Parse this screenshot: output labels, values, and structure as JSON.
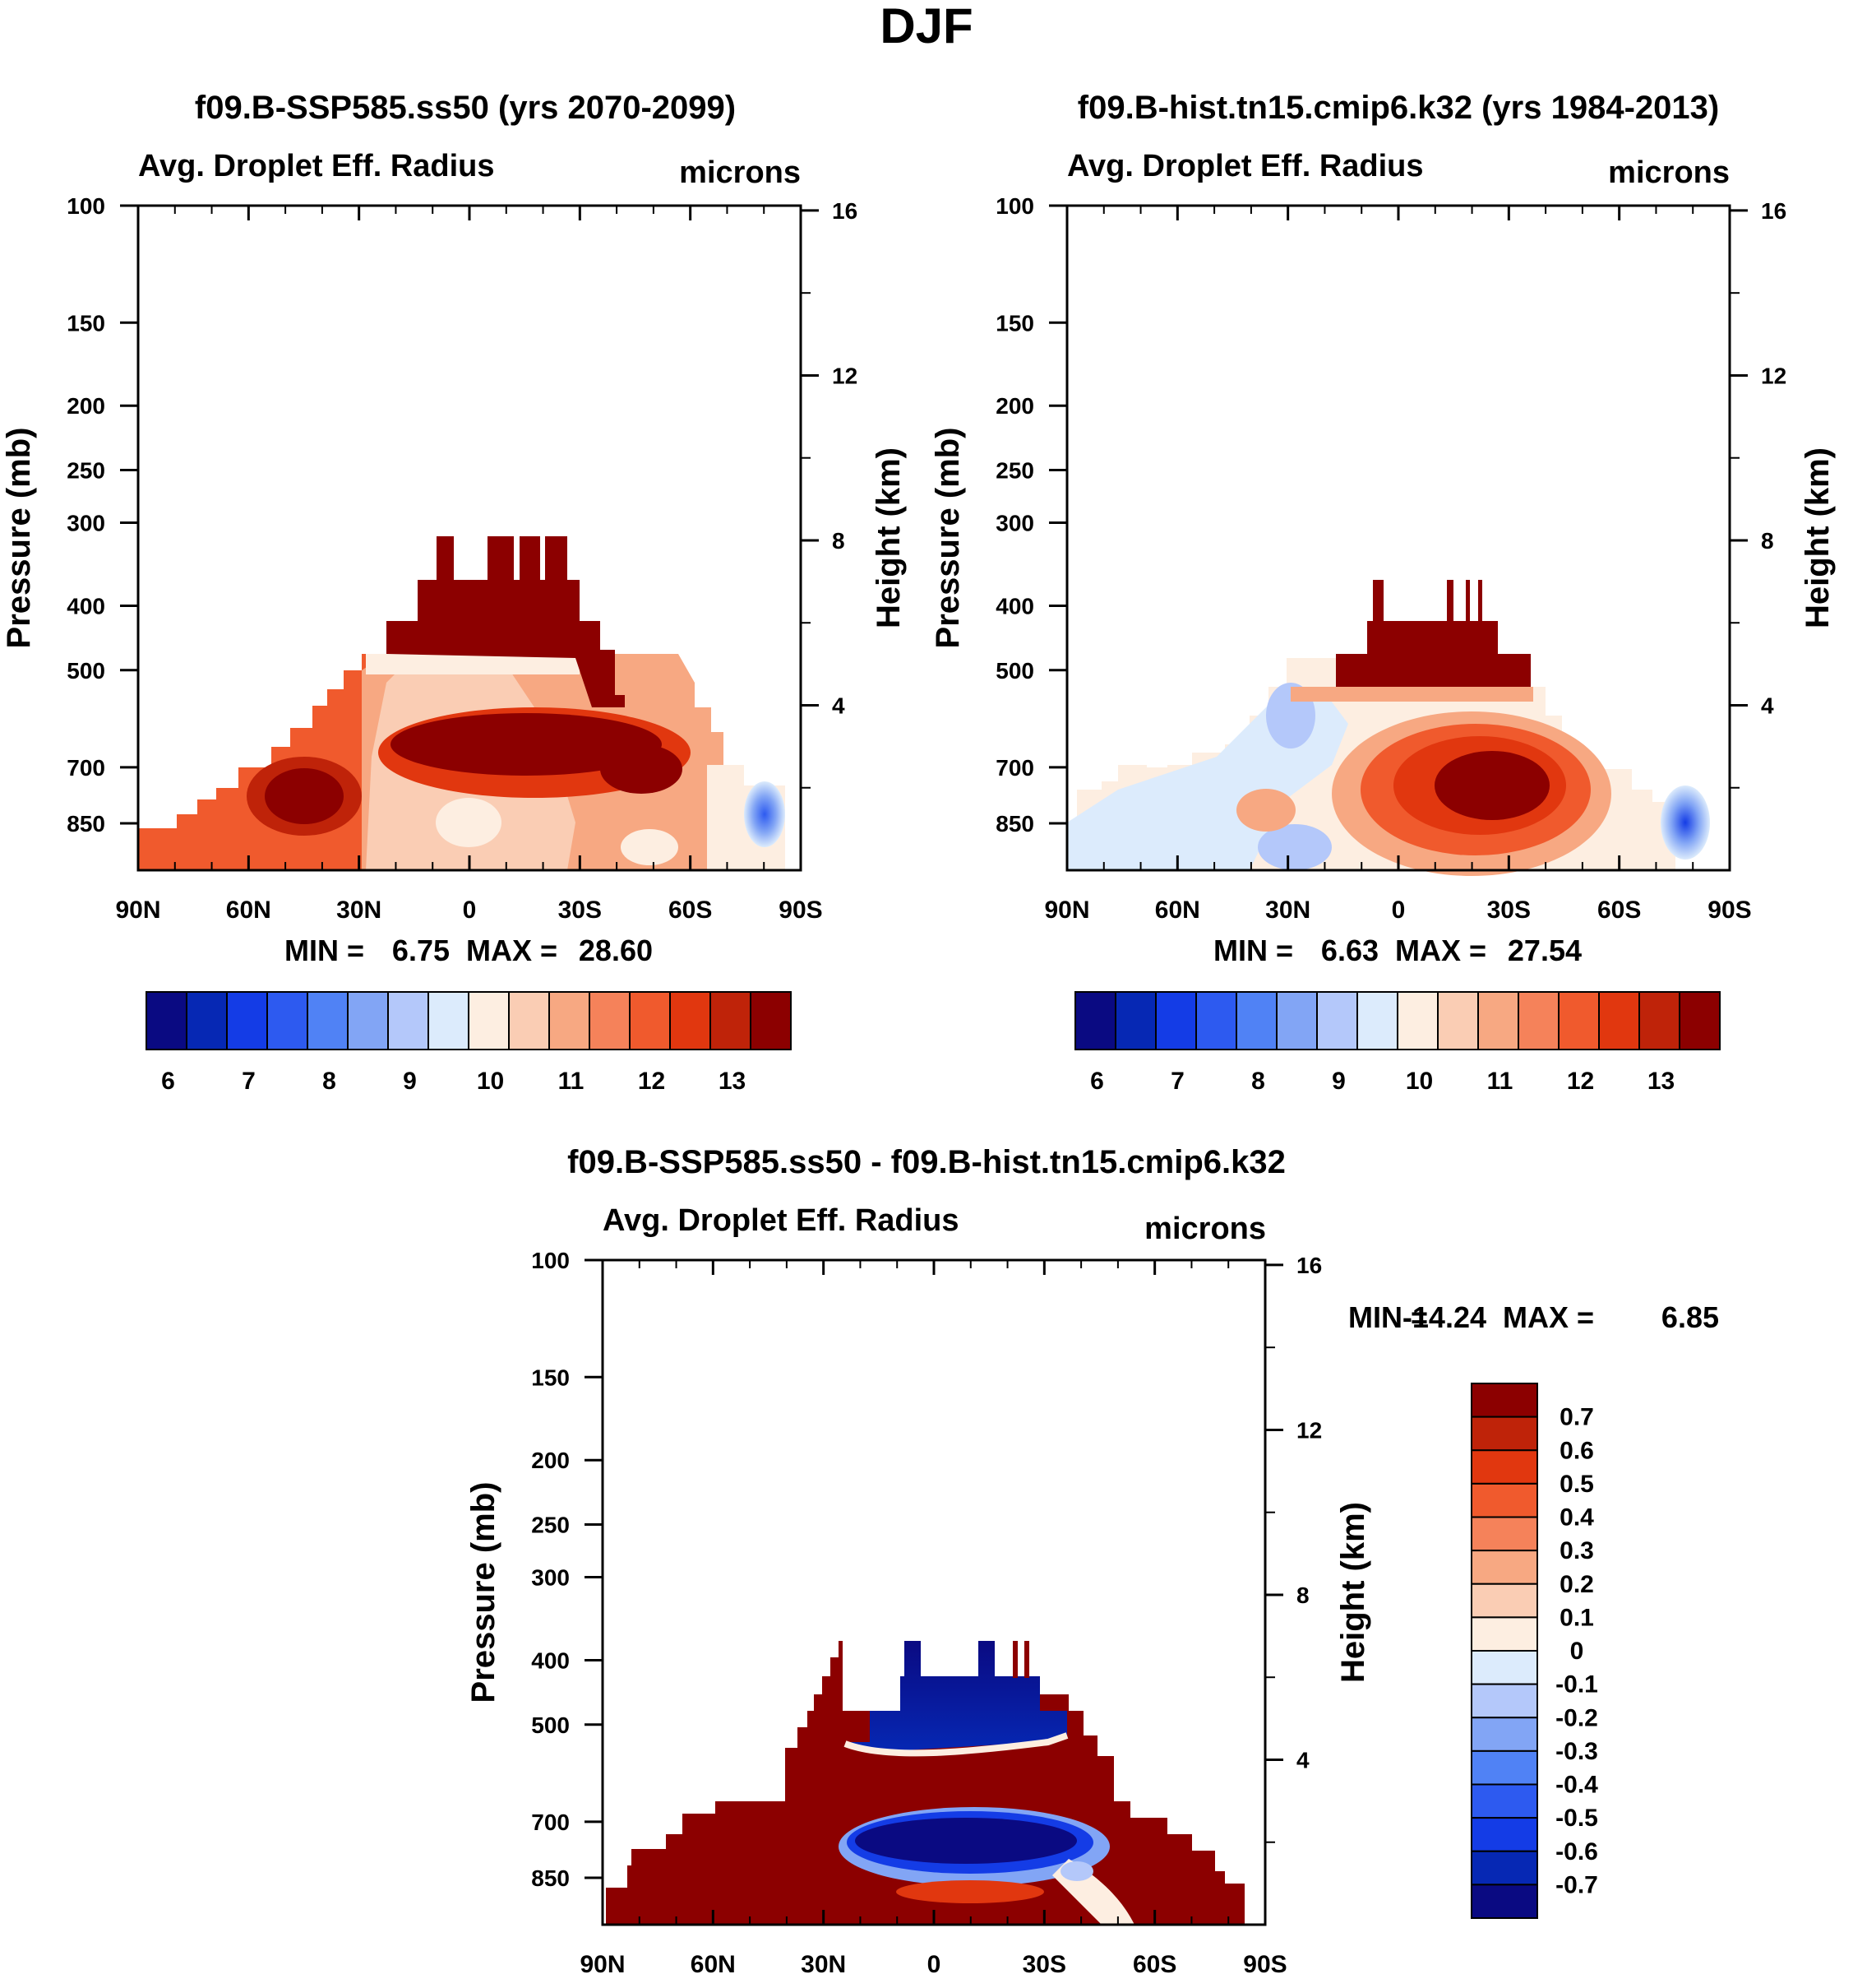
{
  "main_title": "DJF",
  "chart_data": [
    {
      "type": "heatmap",
      "id": "p1",
      "title": "f09.B-SSP585.ss50 (yrs 2070-2099)",
      "left_label": "Avg. Droplet Eff. Radius",
      "right_label": "microns",
      "xlabel": "",
      "ylabel": "Pressure (mb)",
      "y2label": "Height (km)",
      "x_ticks": [
        "90N",
        "60N",
        "30N",
        "0",
        "30S",
        "60S",
        "90S"
      ],
      "y_ticks": [
        100,
        150,
        200,
        250,
        300,
        400,
        500,
        700,
        850
      ],
      "y2_ticks": [
        16,
        12,
        8,
        4
      ],
      "stats": {
        "min_label": "MIN =",
        "min": "6.75",
        "max_label": "MAX =",
        "max": "28.60"
      },
      "colorbar_labels": [
        "6",
        "7",
        "8",
        "9",
        "10",
        "11",
        "12",
        "13"
      ]
    },
    {
      "type": "heatmap",
      "id": "p2",
      "title": "f09.B-hist.tn15.cmip6.k32 (yrs 1984-2013)",
      "left_label": "Avg. Droplet Eff. Radius",
      "right_label": "microns",
      "xlabel": "",
      "ylabel": "Pressure (mb)",
      "y2label": "Height (km)",
      "x_ticks": [
        "90N",
        "60N",
        "30N",
        "0",
        "30S",
        "60S",
        "90S"
      ],
      "y_ticks": [
        100,
        150,
        200,
        250,
        300,
        400,
        500,
        700,
        850
      ],
      "y2_ticks": [
        16,
        12,
        8,
        4
      ],
      "stats": {
        "min_label": "MIN =",
        "min": "6.63",
        "max_label": "MAX =",
        "max": "27.54"
      },
      "colorbar_labels": [
        "6",
        "7",
        "8",
        "9",
        "10",
        "11",
        "12",
        "13"
      ]
    },
    {
      "type": "heatmap",
      "id": "p3",
      "title": "f09.B-SSP585.ss50 - f09.B-hist.tn15.cmip6.k32",
      "left_label": "Avg. Droplet Eff. Radius",
      "right_label": "microns",
      "xlabel": "",
      "ylabel": "Pressure (mb)",
      "y2label": "Height (km)",
      "x_ticks": [
        "90N",
        "60N",
        "30N",
        "0",
        "30S",
        "60S",
        "90S"
      ],
      "y_ticks": [
        100,
        150,
        200,
        250,
        300,
        400,
        500,
        700,
        850
      ],
      "y2_ticks": [
        16,
        12,
        8,
        4
      ],
      "stats": {
        "min_label": "MIN =",
        "min": "-14.24",
        "max_label": "MAX =",
        "max": "6.85"
      },
      "colorbar_labels": [
        "0.7",
        "0.6",
        "0.5",
        "0.4",
        "0.3",
        "0.2",
        "0.1",
        "0",
        "-0.1",
        "-0.2",
        "-0.3",
        "-0.4",
        "-0.5",
        "-0.6",
        "-0.7"
      ]
    }
  ],
  "colors": {
    "abs_palette": [
      "#0a0a82",
      "#0628b4",
      "#143ce6",
      "#2d5af0",
      "#5082f5",
      "#82a5f5",
      "#b4c8fa",
      "#dcebfc",
      "#fdeee1",
      "#facdb4",
      "#f7a882",
      "#f5825a",
      "#f05a2d",
      "#e1370f",
      "#bf2309",
      "#8c0000"
    ],
    "diff_palette": [
      "#8c0000",
      "#bf2309",
      "#e1370f",
      "#f05a2d",
      "#f5825a",
      "#f7a882",
      "#facdb4",
      "#fdeee1",
      "#dcebfc",
      "#b4c8fa",
      "#82a5f5",
      "#5082f5",
      "#2d5af0",
      "#143ce6",
      "#0628b4",
      "#0a0a82"
    ]
  }
}
